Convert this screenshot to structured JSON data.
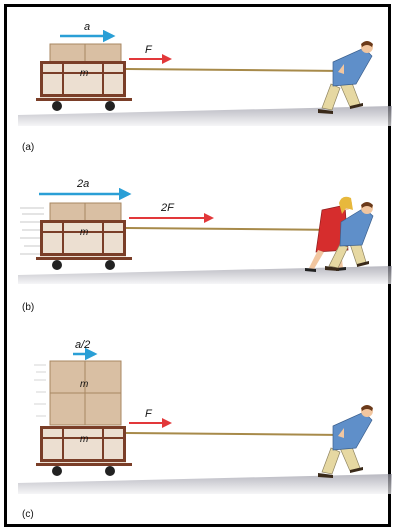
{
  "panels": [
    {
      "id": "a",
      "label": "(a)",
      "acceleration_label": "a",
      "force_label": "F",
      "box_labels": [
        "m"
      ]
    },
    {
      "id": "b",
      "label": "(b)",
      "acceleration_label": "2a",
      "force_label": "2F",
      "box_labels": [
        "m"
      ]
    },
    {
      "id": "c",
      "label": "(c)",
      "acceleration_label": "a/2",
      "force_label": "F",
      "box_labels": [
        "m",
        "m"
      ]
    }
  ],
  "colors": {
    "frame": "#000000",
    "ground_light": "#f2f2f4",
    "ground_dark": "#9a9aa6",
    "box": "#d9bfa3",
    "box_edge": "#a88762",
    "cart": "#7a3e28",
    "wheel": "#222222",
    "rope": "#a78a4a",
    "accel_arrow": "#2a9fd6",
    "force_arrow": "#e2383a",
    "shirt_blue": "#5f8fc9",
    "pants_khaki": "#e6d8a2",
    "dress_red": "#d62d2d",
    "hair_blond": "#e7b83c",
    "hair_brown": "#6b3a1a",
    "skin": "#f1c6a0"
  },
  "icons": [
    "cart-icon",
    "box-icon",
    "person-pulling-icon",
    "acceleration-arrow-icon",
    "force-arrow-icon"
  ]
}
